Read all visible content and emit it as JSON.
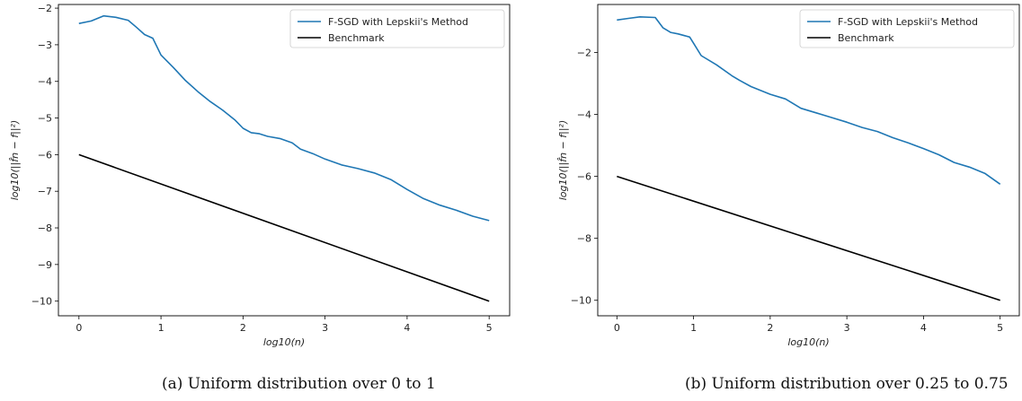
{
  "chart_data": [
    {
      "type": "line",
      "caption": "(a)  Uniform distribution over 0 to 1",
      "xlabel": "log10(n)",
      "ylabel": "log10(||f̂n − f||²)",
      "xlim": [
        -0.25,
        5.25
      ],
      "ylim": [
        -10.4,
        -1.9
      ],
      "xticks": [
        0,
        1,
        2,
        3,
        4,
        5
      ],
      "yticks": [
        -10,
        -9,
        -8,
        -7,
        -6,
        -5,
        -4,
        -3,
        -2
      ],
      "legend": "top-right",
      "grid": false,
      "series": [
        {
          "name": "F-SGD with Lepskii's Method",
          "color": "#1f77b4",
          "x": [
            0,
            0.15,
            0.3,
            0.45,
            0.6,
            0.7,
            0.8,
            0.9,
            1.0,
            1.15,
            1.3,
            1.45,
            1.6,
            1.75,
            1.9,
            2.0,
            2.1,
            2.2,
            2.3,
            2.45,
            2.6,
            2.7,
            2.85,
            3.0,
            3.2,
            3.4,
            3.6,
            3.8,
            4.0,
            4.2,
            4.4,
            4.6,
            4.8,
            5.0
          ],
          "y": [
            -2.42,
            -2.35,
            -2.21,
            -2.25,
            -2.33,
            -2.52,
            -2.72,
            -2.82,
            -3.28,
            -3.62,
            -3.98,
            -4.28,
            -4.55,
            -4.78,
            -5.05,
            -5.28,
            -5.4,
            -5.43,
            -5.5,
            -5.56,
            -5.68,
            -5.85,
            -5.97,
            -6.12,
            -6.28,
            -6.38,
            -6.5,
            -6.68,
            -6.95,
            -7.2,
            -7.38,
            -7.52,
            -7.68,
            -7.8
          ]
        },
        {
          "name": "Benchmark",
          "color": "#000000",
          "x": [
            0,
            5
          ],
          "y": [
            -6,
            -10
          ]
        }
      ]
    },
    {
      "type": "line",
      "caption": "(b)  Uniform distribution over 0.25 to 0.75",
      "xlabel": "log10(n)",
      "ylabel": "log10(||f̂n − f||²)",
      "xlim": [
        -0.25,
        5.25
      ],
      "ylim": [
        -10.5,
        -0.45
      ],
      "xticks": [
        0,
        1,
        2,
        3,
        4,
        5
      ],
      "yticks": [
        -10,
        -8,
        -6,
        -4,
        -2
      ],
      "legend": "top-right",
      "grid": false,
      "series": [
        {
          "name": "F-SGD with Lepskii's Method",
          "color": "#1f77b4",
          "x": [
            0,
            0.15,
            0.3,
            0.5,
            0.6,
            0.7,
            0.8,
            0.95,
            1.0,
            1.1,
            1.3,
            1.5,
            1.6,
            1.75,
            2.0,
            2.2,
            2.4,
            2.6,
            2.8,
            3.0,
            3.2,
            3.4,
            3.6,
            3.8,
            4.0,
            4.2,
            4.4,
            4.6,
            4.8,
            5.0
          ],
          "y": [
            -0.95,
            -0.9,
            -0.85,
            -0.87,
            -1.2,
            -1.35,
            -1.4,
            -1.5,
            -1.7,
            -2.1,
            -2.4,
            -2.75,
            -2.9,
            -3.1,
            -3.35,
            -3.5,
            -3.8,
            -3.95,
            -4.1,
            -4.25,
            -4.42,
            -4.55,
            -4.75,
            -4.92,
            -5.1,
            -5.3,
            -5.55,
            -5.7,
            -5.9,
            -6.25
          ]
        },
        {
          "name": "Benchmark",
          "color": "#000000",
          "x": [
            0,
            5
          ],
          "y": [
            -6,
            -10
          ]
        }
      ]
    }
  ]
}
